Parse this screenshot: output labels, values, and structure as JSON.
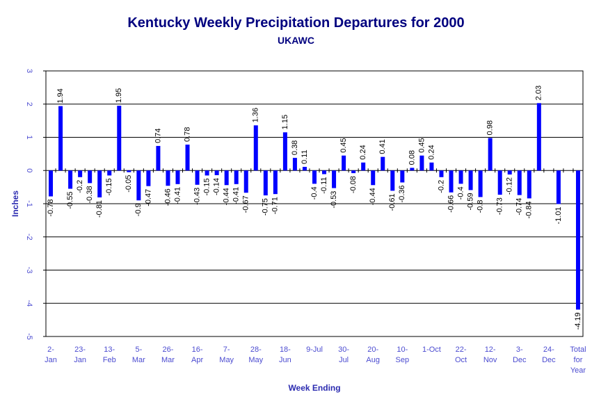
{
  "chart_data": {
    "type": "bar",
    "title": "Kentucky Weekly Precipitation Departures for 2000",
    "subtitle": "UKAWC",
    "xlabel": "Week Ending",
    "ylabel": "Inches",
    "ylim": [
      -5,
      3
    ],
    "yticks": [
      "3",
      "2",
      "1",
      "0",
      "-1",
      "-2",
      "-3",
      "-4",
      "-5"
    ],
    "grid": true,
    "bar_color": "#0000ff",
    "x_tick_labels": [
      [
        "2-",
        "Jan"
      ],
      [
        "23-",
        "Jan"
      ],
      [
        "13-",
        "Feb"
      ],
      [
        "5-",
        "Mar"
      ],
      [
        "26-",
        "Mar"
      ],
      [
        "16-",
        "Apr"
      ],
      [
        "7-",
        "May"
      ],
      [
        "28-",
        "May"
      ],
      [
        "18-",
        "Jun"
      ],
      [
        "9-Jul"
      ],
      [
        "30-",
        "Jul"
      ],
      [
        "20-",
        "Aug"
      ],
      [
        "10-",
        "Sep"
      ],
      [
        "1-Oct"
      ],
      [
        "22-",
        "Oct"
      ],
      [
        "12-",
        "Nov"
      ],
      [
        "3-",
        "Dec"
      ],
      [
        "24-",
        "Dec"
      ],
      [
        "Total",
        "for",
        "Year"
      ]
    ],
    "values": [
      -0.78,
      1.94,
      -0.55,
      -0.2,
      -0.38,
      -0.81,
      -0.15,
      1.95,
      -0.05,
      -0.9,
      -0.47,
      0.74,
      -0.46,
      -0.41,
      0.78,
      -0.43,
      -0.15,
      -0.14,
      -0.44,
      -0.41,
      -0.67,
      1.36,
      -0.75,
      -0.71,
      1.15,
      0.38,
      0.11,
      -0.4,
      -0.11,
      -0.53,
      0.45,
      -0.08,
      0.24,
      -0.44,
      0.41,
      -0.61,
      -0.36,
      0.08,
      0.45,
      0.24,
      -0.2,
      -0.66,
      -0.4,
      -0.59,
      -0.8,
      0.98,
      -0.73,
      -0.12,
      -0.74,
      -0.84,
      2.03,
      null,
      -1.01,
      null,
      -4.19
    ],
    "labels": [
      "-0.78",
      "1.94",
      "-0.55",
      "-0.2",
      "-0.38",
      "-0.81",
      "-0.15",
      "1.95",
      "-0.05",
      "-0.9",
      "-0.47",
      "0.74",
      "-0.46",
      "-0.41",
      "0.78",
      "-0.43",
      "-0.15",
      "-0.14",
      "-0.44",
      "-0.41",
      "-0.67",
      "1.36",
      "-0.75",
      "-0.71",
      "1.15",
      "0.38",
      "0.11",
      "-0.4",
      "-0.11",
      "-0.53",
      "0.45",
      "-0.08",
      "0.24",
      "-0.44",
      "0.41",
      "-0.61",
      "-0.36",
      "0.08",
      "0.45",
      "0.24",
      "-0.2",
      "-0.66",
      "-0.4",
      "-0.59",
      "-0.8",
      "0.98",
      "-0.73",
      "-0.12",
      "-0.74",
      "-0.84",
      "2.03",
      "",
      "-1.01",
      "",
      "-4.19"
    ]
  }
}
